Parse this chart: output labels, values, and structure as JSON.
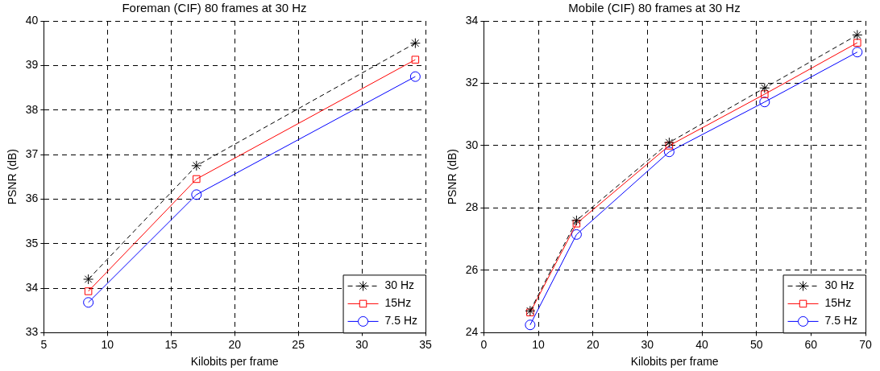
{
  "chart_data": [
    {
      "type": "line",
      "title": "Foreman (CIF) 80 frames at 30 Hz",
      "xlabel": "Kilobits per frame",
      "ylabel": "PSNR (dB)",
      "x": [
        8.5,
        17,
        34.2
      ],
      "xlim": [
        5,
        35
      ],
      "xticks": [
        5,
        10,
        15,
        20,
        25,
        30,
        35
      ],
      "ylim": [
        33,
        40
      ],
      "yticks": [
        33,
        34,
        35,
        36,
        37,
        38,
        39,
        40
      ],
      "grid": true,
      "legend": "bottom right",
      "series": [
        {
          "name": "30 Hz",
          "color": "#000000",
          "marker": "cross",
          "line_style": "dashed",
          "values": [
            34.2,
            36.75,
            39.5
          ]
        },
        {
          "name": "15Hz",
          "color": "#ff0000",
          "marker": "square",
          "line_style": "solid",
          "values": [
            33.93,
            36.45,
            39.13
          ]
        },
        {
          "name": "7.5 Hz",
          "color": "#0000ff",
          "marker": "circle",
          "line_style": "solid",
          "values": [
            33.68,
            36.1,
            38.75
          ]
        }
      ]
    },
    {
      "type": "line",
      "title": "Mobile (CIF) 80 frames at 30 Hz",
      "xlabel": "Kilobits per frame",
      "ylabel": "PSNR (dB)",
      "x": [
        8.5,
        17,
        34,
        51.5,
        68.5
      ],
      "xlim": [
        0,
        70
      ],
      "xticks": [
        0,
        10,
        20,
        30,
        40,
        50,
        60,
        70
      ],
      "ylim": [
        24,
        34
      ],
      "yticks": [
        24,
        26,
        28,
        30,
        32,
        34
      ],
      "grid": true,
      "legend": "bottom right",
      "series": [
        {
          "name": "30 Hz",
          "color": "#000000",
          "marker": "cross",
          "line_style": "dashed",
          "values": [
            24.7,
            27.6,
            30.1,
            31.85,
            33.55
          ]
        },
        {
          "name": "15Hz",
          "color": "#ff0000",
          "marker": "square",
          "line_style": "solid",
          "values": [
            24.65,
            27.5,
            30.0,
            31.65,
            33.3
          ]
        },
        {
          "name": "7.5 Hz",
          "color": "#0000ff",
          "marker": "circle",
          "line_style": "solid",
          "values": [
            24.25,
            27.15,
            29.8,
            31.4,
            33.0
          ]
        }
      ]
    }
  ]
}
